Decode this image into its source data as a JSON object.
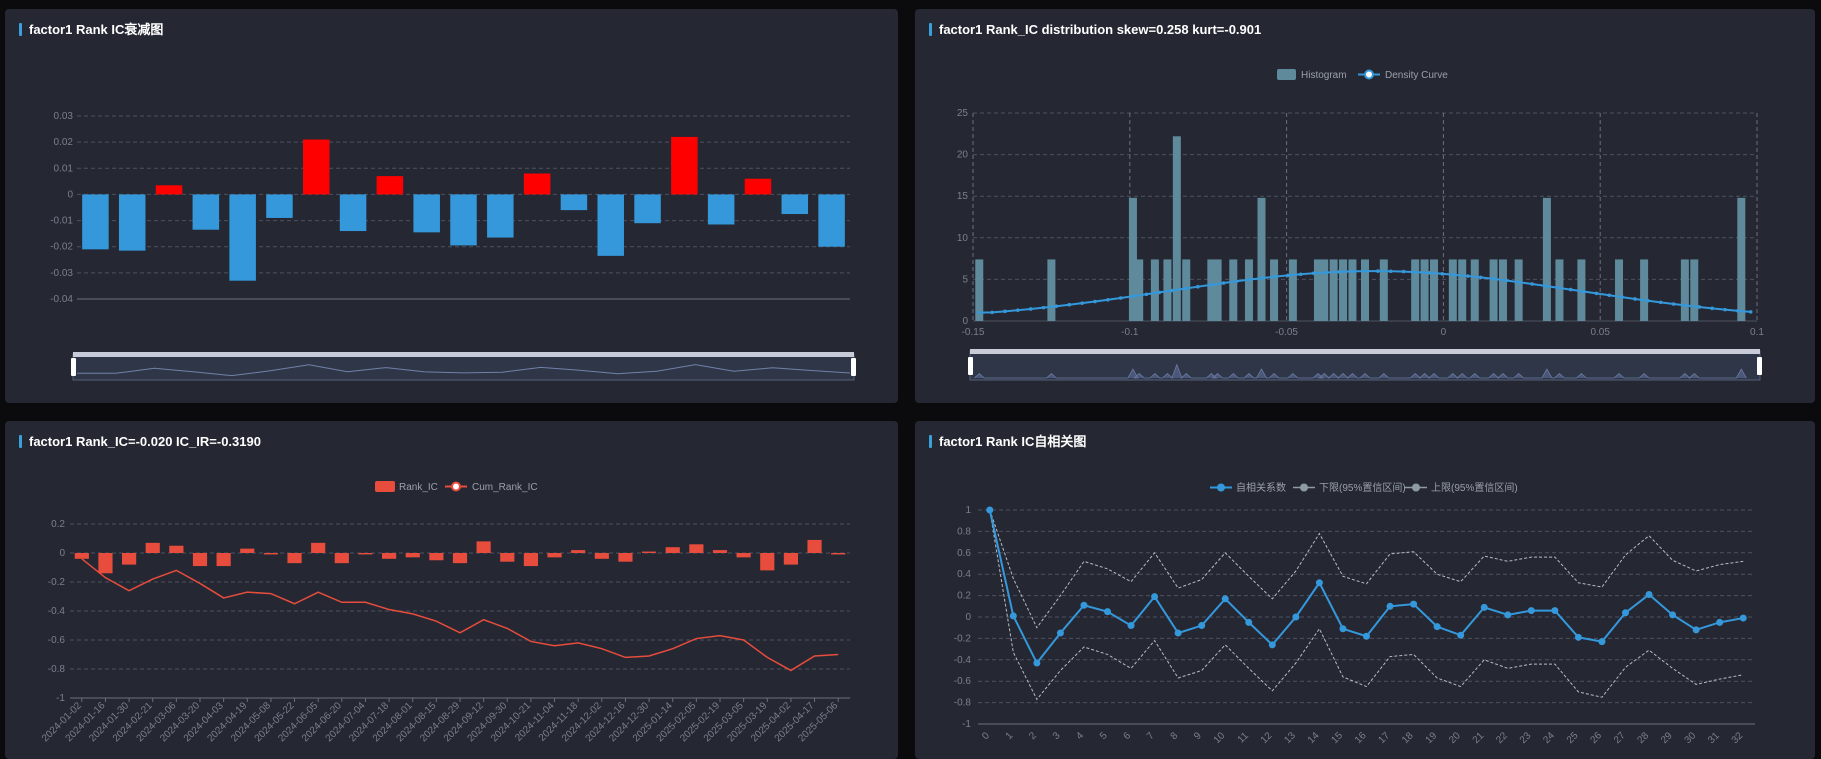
{
  "colors": {
    "blue": "#3498db",
    "red": "#ff0000",
    "cum_red": "#e74c3c",
    "hist": "#5f8a9c",
    "panel": "#252833"
  },
  "panels": {
    "decay": {
      "title": "factor1 Rank IC衰减图"
    },
    "dist": {
      "title": "factor1 Rank_IC distribution skew=0.258 kurt=-0.901"
    },
    "ts": {
      "title": "factor1 Rank_IC=-0.020 IC_IR=-0.3190"
    },
    "acf": {
      "title": "factor1 Rank IC自相关图"
    }
  },
  "chart_data": [
    {
      "type": "bar",
      "title": "factor1 Rank IC衰减图",
      "values": [
        -0.021,
        -0.0215,
        0.0035,
        -0.0135,
        -0.033,
        -0.009,
        0.021,
        -0.014,
        0.007,
        -0.0145,
        -0.0195,
        -0.0165,
        0.008,
        -0.006,
        -0.0235,
        -0.011,
        0.022,
        -0.0115,
        0.006,
        -0.0075,
        -0.02
      ],
      "ylim": [
        -0.04,
        0.03
      ],
      "yticks": [
        "0.03",
        "0.02",
        "0.01",
        "0",
        "-0.01",
        "-0.02",
        "-0.03",
        "-0.04"
      ],
      "positive_color": "#ff0000",
      "negative_color": "#3498db",
      "datazoom": true
    },
    {
      "type": "bar",
      "title": "factor1 Rank_IC distribution skew=0.258 kurt=-0.901",
      "legend": [
        "Histogram",
        "Density Curve"
      ],
      "xlim": [
        -0.15,
        0.1
      ],
      "ylim": [
        0,
        25
      ],
      "xticks": [
        "-0.15",
        "-0.1",
        "-0.05",
        "0",
        "0.05",
        "0.1"
      ],
      "yticks": [
        "0",
        "5",
        "10",
        "15",
        "20",
        "25"
      ],
      "histogram": {
        "x": [
          -0.148,
          -0.125,
          -0.099,
          -0.097,
          -0.092,
          -0.088,
          -0.085,
          -0.082,
          -0.074,
          -0.072,
          -0.067,
          -0.062,
          -0.058,
          -0.054,
          -0.048,
          -0.04,
          -0.038,
          -0.035,
          -0.032,
          -0.029,
          -0.025,
          -0.019,
          -0.009,
          -0.006,
          -0.003,
          0.003,
          0.006,
          0.01,
          0.016,
          0.019,
          0.024,
          0.033,
          0.037,
          0.044,
          0.056,
          0.064,
          0.077,
          0.08,
          0.095
        ],
        "y": [
          7.4,
          7.4,
          14.8,
          7.4,
          7.4,
          7.4,
          22.2,
          7.4,
          7.4,
          7.4,
          7.4,
          7.4,
          14.8,
          7.4,
          7.4,
          7.4,
          7.4,
          7.4,
          7.4,
          7.4,
          7.4,
          7.4,
          7.4,
          7.4,
          7.4,
          7.4,
          7.4,
          7.4,
          7.4,
          7.4,
          7.4,
          14.8,
          7.4,
          7.4,
          7.4,
          7.4,
          7.4,
          7.4,
          14.8
        ]
      },
      "density": {
        "x_start": -0.148,
        "x_end": 0.098,
        "count": 61,
        "peak_x": -0.022,
        "peak_y": 6.0,
        "sigma": 0.065,
        "edge_y": 1.0
      },
      "datazoom": true
    },
    {
      "type": "bar",
      "title": "factor1 Rank_IC=-0.020 IC_IR=-0.3190",
      "legend": [
        "Rank_IC",
        "Cum_Rank_IC"
      ],
      "categories": [
        "2024-01-02",
        "2024-01-16",
        "2024-01-30",
        "2024-02-21",
        "2024-03-06",
        "2024-03-20",
        "2024-04-03",
        "2024-04-19",
        "2024-05-08",
        "2024-05-22",
        "2024-06-05",
        "2024-06-20",
        "2024-07-04",
        "2024-07-18",
        "2024-08-01",
        "2024-08-15",
        "2024-08-29",
        "2024-09-12",
        "2024-09-30",
        "2024-10-21",
        "2024-11-04",
        "2024-11-18",
        "2024-12-02",
        "2024-12-16",
        "2024-12-30",
        "2025-01-14",
        "2025-02-05",
        "2025-02-19",
        "2025-03-05",
        "2025-03-19",
        "2025-04-02",
        "2025-04-17",
        "2025-05-06"
      ],
      "series": [
        {
          "name": "Rank_IC",
          "values": [
            -0.04,
            -0.14,
            -0.08,
            0.07,
            0.05,
            -0.09,
            -0.09,
            0.03,
            -0.01,
            -0.07,
            0.07,
            -0.07,
            -0.01,
            -0.04,
            -0.03,
            -0.05,
            -0.07,
            0.08,
            -0.06,
            -0.09,
            -0.03,
            0.02,
            -0.04,
            -0.06,
            0.01,
            0.04,
            0.06,
            0.02,
            -0.03,
            -0.12,
            -0.08,
            0.09,
            -0.01
          ]
        },
        {
          "name": "Cum_Rank_IC",
          "values": [
            -0.04,
            -0.17,
            -0.26,
            -0.18,
            -0.12,
            -0.21,
            -0.31,
            -0.27,
            -0.28,
            -0.35,
            -0.27,
            -0.34,
            -0.34,
            -0.39,
            -0.42,
            -0.47,
            -0.55,
            -0.46,
            -0.52,
            -0.61,
            -0.64,
            -0.62,
            -0.66,
            -0.72,
            -0.71,
            -0.66,
            -0.59,
            -0.57,
            -0.6,
            -0.72,
            -0.81,
            -0.71,
            -0.7
          ]
        }
      ],
      "ylim": [
        -1,
        0.2
      ],
      "yticks": [
        "0.2",
        "0",
        "-0.2",
        "-0.4",
        "-0.6",
        "-0.8",
        "-1"
      ]
    },
    {
      "type": "line",
      "title": "factor1 Rank IC自相关图",
      "legend": [
        "自相关系数",
        "下限(95%置信区间)",
        "上限(95%置信区间)"
      ],
      "x": [
        0,
        1,
        2,
        3,
        4,
        5,
        6,
        7,
        8,
        9,
        10,
        11,
        12,
        13,
        14,
        15,
        16,
        17,
        18,
        19,
        20,
        21,
        22,
        23,
        24,
        25,
        26,
        27,
        28,
        29,
        30,
        31,
        32
      ],
      "xticks": [
        "0",
        "1",
        "2",
        "3",
        "4",
        "5",
        "6",
        "7",
        "8",
        "9",
        "10",
        "11",
        "12",
        "13",
        "14",
        "15",
        "16",
        "17",
        "18",
        "19",
        "20",
        "21",
        "22",
        "23",
        "24",
        "25",
        "26",
        "27",
        "28",
        "29",
        "30",
        "31",
        "32"
      ],
      "series": [
        {
          "name": "自相关系数",
          "values": [
            1,
            0.01,
            -0.43,
            -0.15,
            0.11,
            0.05,
            -0.08,
            0.19,
            -0.15,
            -0.08,
            0.17,
            -0.05,
            -0.26,
            0,
            0.32,
            -0.11,
            -0.18,
            0.1,
            0.12,
            -0.09,
            -0.17,
            0.09,
            0.02,
            0.06,
            0.06,
            -0.19,
            -0.23,
            0.04,
            0.21,
            0.02,
            -0.12,
            -0.05,
            -0.01
          ]
        },
        {
          "name": "下限(95%置信区间)",
          "values": [
            1,
            -0.33,
            -0.77,
            -0.5,
            -0.28,
            -0.35,
            -0.48,
            -0.22,
            -0.57,
            -0.5,
            -0.26,
            -0.48,
            -0.69,
            -0.43,
            -0.11,
            -0.56,
            -0.65,
            -0.37,
            -0.35,
            -0.57,
            -0.65,
            -0.4,
            -0.48,
            -0.44,
            -0.44,
            -0.7,
            -0.75,
            -0.47,
            -0.31,
            -0.48,
            -0.63,
            -0.58,
            -0.54
          ]
        },
        {
          "name": "上限(95%置信区间)",
          "values": [
            1,
            0.36,
            -0.1,
            0.2,
            0.52,
            0.45,
            0.33,
            0.6,
            0.27,
            0.35,
            0.6,
            0.38,
            0.17,
            0.43,
            0.78,
            0.38,
            0.31,
            0.59,
            0.61,
            0.4,
            0.33,
            0.57,
            0.52,
            0.56,
            0.56,
            0.32,
            0.28,
            0.58,
            0.76,
            0.53,
            0.43,
            0.49,
            0.52
          ]
        }
      ],
      "ylim": [
        -1,
        1
      ],
      "yticks": [
        "1",
        "0.8",
        "0.6",
        "0.4",
        "0.2",
        "0",
        "-0.2",
        "-0.4",
        "-0.6",
        "-0.8",
        "-1"
      ]
    }
  ]
}
